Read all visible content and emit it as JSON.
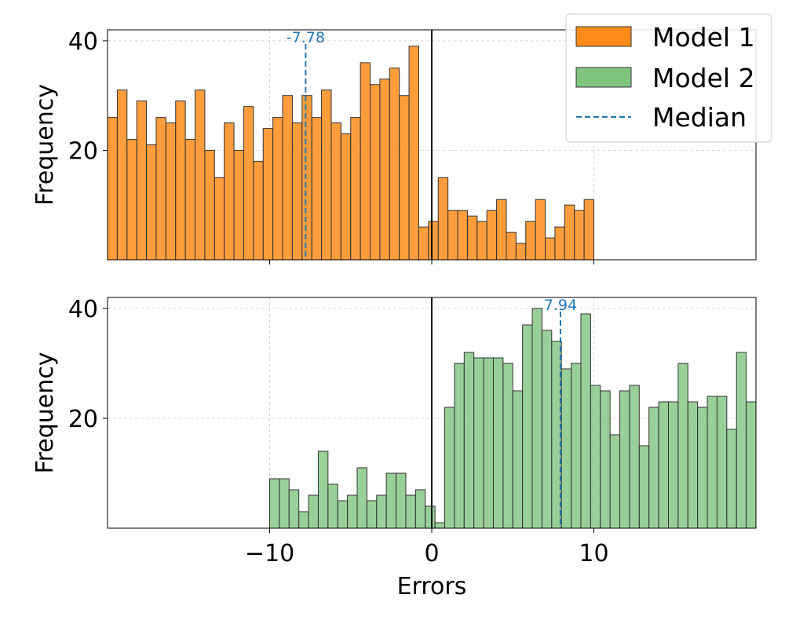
{
  "chart_data": [
    {
      "type": "bar",
      "title": "",
      "series_name": "Model 1",
      "xlabel": "",
      "ylabel": "Frequency",
      "xlim": [
        -20,
        20
      ],
      "ylim": [
        0,
        42
      ],
      "x_ticks": [
        -10,
        0,
        10
      ],
      "x_tick_labels_visible": false,
      "y_ticks": [
        20,
        40
      ],
      "y_tick_labels": [
        "20",
        "40"
      ],
      "grid": true,
      "bin_start": -20,
      "bin_width": 0.6,
      "counts": [
        26,
        31,
        22,
        29,
        21,
        26,
        25,
        29,
        22,
        31,
        20,
        15,
        25,
        20,
        28,
        18,
        24,
        26,
        30,
        25,
        30,
        26,
        31,
        25,
        23,
        26,
        36,
        32,
        33,
        35,
        30,
        39,
        6,
        7,
        15,
        9,
        9,
        8,
        7,
        9,
        11,
        5,
        3,
        7,
        11,
        4,
        6,
        10,
        9,
        11
      ],
      "color": "#ff8c1a",
      "median": -7.78,
      "median_label": "-7.78",
      "median_color": "#1f77b4",
      "zero_line": 0
    },
    {
      "type": "bar",
      "title": "",
      "series_name": "Model 2",
      "xlabel": "Errors",
      "ylabel": "Frequency",
      "xlim": [
        -20,
        20
      ],
      "ylim": [
        0,
        42
      ],
      "x_ticks": [
        -10,
        0,
        10
      ],
      "x_tick_labels": [
        "−10",
        "0",
        "10"
      ],
      "x_tick_labels_visible": true,
      "y_ticks": [
        20,
        40
      ],
      "y_tick_labels": [
        "20",
        "40"
      ],
      "grid": true,
      "bin_start": -10,
      "bin_width": 0.6,
      "counts": [
        9,
        9,
        7,
        3,
        6,
        14,
        8,
        5,
        6,
        11,
        5,
        6,
        10,
        10,
        6,
        7,
        4,
        1,
        22,
        30,
        32,
        31,
        31,
        31,
        30,
        25,
        37,
        40,
        36,
        34,
        29,
        30,
        39,
        26,
        25,
        17,
        25,
        26,
        15,
        22,
        23,
        23,
        30,
        23,
        22,
        24,
        24,
        18,
        32,
        23
      ],
      "color": "#7fc47f",
      "median": 7.94,
      "median_label": "7.94",
      "median_color": "#1f77b4",
      "zero_line": 0
    }
  ],
  "legend": {
    "placement": "top-right",
    "entries": [
      {
        "label": "Model 1",
        "kind": "patch",
        "color": "#ff8c1a"
      },
      {
        "label": "Model 2",
        "kind": "patch",
        "color": "#7fc47f"
      },
      {
        "label": "Median",
        "kind": "dashed-line",
        "color": "#1f77b4"
      }
    ]
  }
}
